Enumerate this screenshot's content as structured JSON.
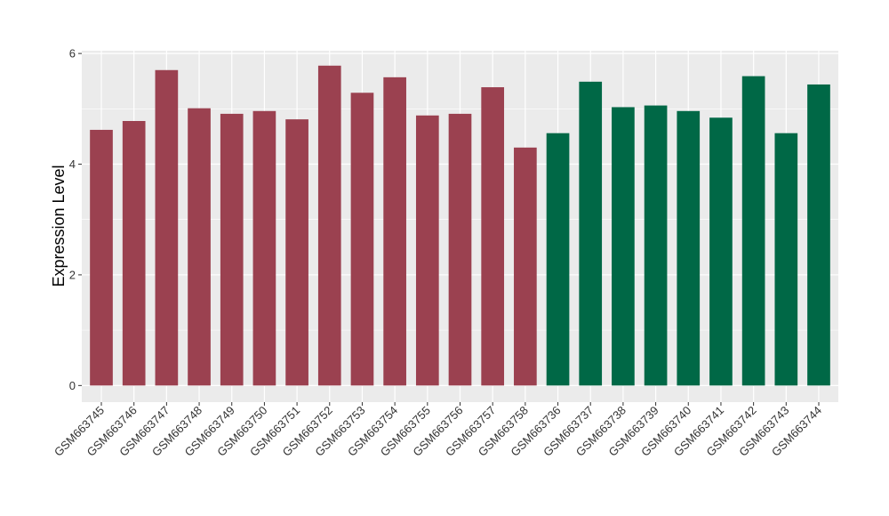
{
  "chart_data": {
    "type": "bar",
    "ylabel": "Expression Level",
    "xlabel": "",
    "ylim": [
      -0.3,
      6.05
    ],
    "yticks": [
      0,
      2,
      4,
      6
    ],
    "grid": true,
    "categories": [
      "GSM663745",
      "GSM663746",
      "GSM663747",
      "GSM663748",
      "GSM663749",
      "GSM663750",
      "GSM663751",
      "GSM663752",
      "GSM663753",
      "GSM663754",
      "GSM663755",
      "GSM663756",
      "GSM663757",
      "GSM663758",
      "GSM663736",
      "GSM663737",
      "GSM663738",
      "GSM663739",
      "GSM663740",
      "GSM663741",
      "GSM663742",
      "GSM663743",
      "GSM663744"
    ],
    "values": [
      4.62,
      4.78,
      5.7,
      5.01,
      4.91,
      4.96,
      4.81,
      5.78,
      5.29,
      5.57,
      4.88,
      4.91,
      5.39,
      4.3,
      4.56,
      5.49,
      5.03,
      5.06,
      4.96,
      4.84,
      5.59,
      4.56,
      5.44
    ],
    "group_colors": [
      "#9B4150",
      "#9B4150",
      "#9B4150",
      "#9B4150",
      "#9B4150",
      "#9B4150",
      "#9B4150",
      "#9B4150",
      "#9B4150",
      "#9B4150",
      "#9B4150",
      "#9B4150",
      "#9B4150",
      "#9B4150",
      "#006846",
      "#006846",
      "#006846",
      "#006846",
      "#006846",
      "#006846",
      "#006846",
      "#006846",
      "#006846"
    ],
    "panel_background": "#EBEBEB",
    "grid_color": "#FFFFFF"
  }
}
